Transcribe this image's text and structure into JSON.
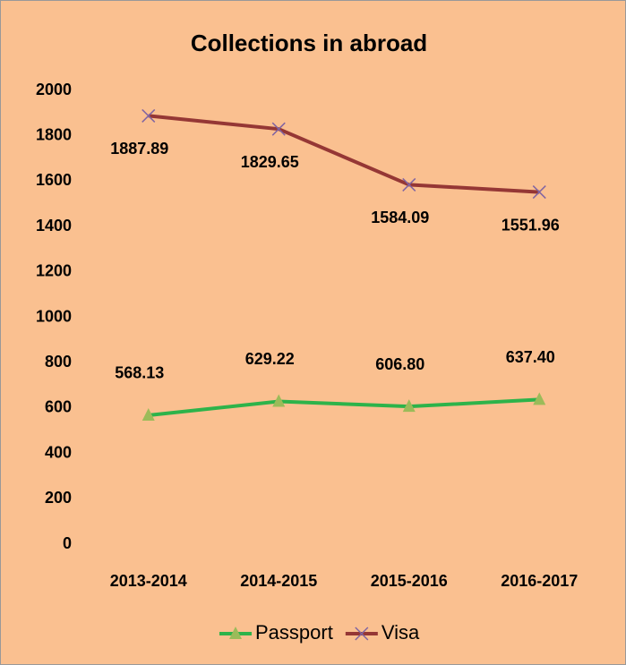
{
  "chart_data": {
    "type": "line",
    "title": "Collections in abroad",
    "categories": [
      "2013-2014",
      "2014-2015",
      "2015-2016",
      "2016-2017"
    ],
    "series": [
      {
        "name": "Passport",
        "color": "#2db34a",
        "marker_color": "#9bbb59",
        "marker": "triangle",
        "values": [
          568.13,
          629.22,
          606.8,
          637.4
        ],
        "value_labels": [
          "568.13",
          "629.22",
          "606.80",
          "637.40"
        ]
      },
      {
        "name": "Visa",
        "color": "#953735",
        "marker_color": "#8064a2",
        "marker": "x",
        "values": [
          1887.89,
          1829.65,
          1584.09,
          1551.96
        ],
        "value_labels": [
          "1887.89",
          "1829.65",
          "1584.09",
          "1551.96"
        ]
      }
    ],
    "ylim": [
      0,
      2000
    ],
    "yticks": [
      0,
      200,
      400,
      600,
      800,
      1000,
      1200,
      1400,
      1600,
      1800,
      2000
    ],
    "grid": false,
    "legend": "bottom"
  }
}
